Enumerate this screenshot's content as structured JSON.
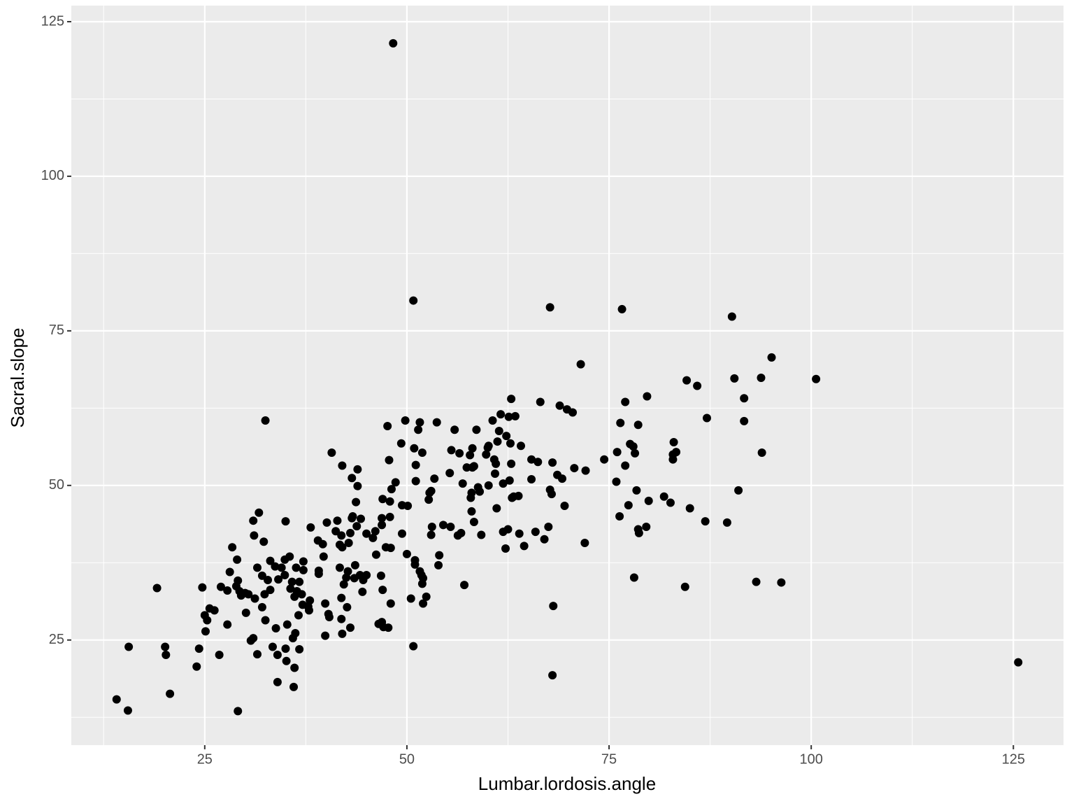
{
  "chart_data": {
    "type": "scatter",
    "x_label": "Lumbar.lordosis.angle",
    "y_label": "Sacral.slope",
    "xlim": [
      8.5,
      131.2
    ],
    "ylim": [
      8.0,
      127.6
    ],
    "xticks": [
      25,
      50,
      75,
      100,
      125
    ],
    "yticks": [
      25,
      50,
      75,
      100,
      125
    ],
    "grid": true,
    "color": "#000000",
    "x": [
      14.1,
      15.5,
      15.6,
      19.1,
      20.1,
      20.2,
      20.7,
      24.0,
      24.3,
      24.7,
      25.0,
      25.3,
      25.1,
      25.6,
      26.2,
      26.8,
      27.0,
      27.8,
      27.8,
      28.1,
      28.4,
      28.9,
      29.0,
      29.1,
      29.1,
      29.3,
      29.5,
      30.0,
      30.1,
      30.4,
      30.7,
      31.0,
      31.1,
      31.0,
      31.2,
      31.5,
      31.5,
      31.7,
      32.1,
      32.1,
      32.3,
      32.4,
      32.5,
      32.5,
      32.8,
      33.1,
      33.1,
      33.4,
      33.7,
      33.8,
      34.0,
      34.0,
      34.1,
      34.5,
      34.9,
      34.9,
      35.0,
      35.0,
      35.1,
      35.2,
      35.5,
      35.6,
      35.8,
      35.9,
      36.0,
      36.1,
      36.1,
      36.2,
      36.3,
      36.4,
      36.6,
      36.7,
      36.7,
      37.0,
      37.1,
      37.2,
      37.2,
      37.8,
      37.9,
      38.0,
      38.1,
      39.0,
      39.1,
      39.1,
      39.6,
      39.7,
      39.9,
      39.9,
      40.1,
      40.3,
      40.4,
      40.7,
      41.2,
      41.4,
      41.7,
      41.7,
      41.9,
      42.0,
      41.9,
      41.9,
      42.0,
      42.0,
      42.2,
      42.5,
      42.6,
      42.7,
      42.8,
      43.0,
      43.0,
      43.2,
      43.2,
      43.3,
      43.5,
      43.6,
      43.7,
      43.8,
      43.9,
      43.9,
      44.2,
      44.3,
      44.5,
      44.6,
      45.0,
      45.0,
      45.8,
      46.1,
      46.2,
      46.5,
      46.8,
      46.9,
      46.9,
      47.0,
      46.9,
      47.0,
      47.1,
      47.4,
      47.6,
      47.7,
      47.8,
      47.9,
      47.9,
      48.0,
      48.0,
      48.1,
      48.3,
      48.6,
      49.3,
      49.4,
      49.4,
      49.8,
      50.0,
      50.1,
      50.5,
      50.8,
      50.8,
      50.9,
      51.0,
      51.0,
      51.1,
      51.1,
      51.4,
      51.6,
      51.6,
      51.8,
      51.9,
      51.9,
      52.0,
      52.0,
      52.4,
      52.7,
      52.8,
      53.0,
      53.0,
      53.1,
      53.4,
      53.7,
      53.9,
      54.0,
      54.5,
      55.3,
      55.4,
      55.5,
      55.9,
      56.3,
      56.5,
      56.7,
      56.9,
      57.1,
      57.4,
      57.8,
      57.9,
      58.0,
      58.0,
      58.1,
      58.1,
      58.3,
      58.3,
      58.6,
      58.8,
      59.0,
      59.2,
      59.8,
      60.0,
      60.1,
      60.1,
      60.6,
      60.8,
      60.9,
      61.0,
      61.1,
      61.2,
      61.4,
      61.6,
      61.9,
      61.9,
      62.2,
      62.3,
      62.5,
      62.6,
      62.7,
      62.8,
      62.9,
      62.9,
      63.0,
      63.2,
      63.4,
      63.8,
      63.9,
      64.1,
      64.5,
      65.4,
      65.4,
      65.9,
      66.2,
      66.5,
      67.0,
      67.5,
      67.7,
      67.7,
      67.9,
      68.0,
      68.1,
      68.0,
      68.6,
      68.9,
      69.2,
      69.8,
      69.5,
      70.5,
      70.7,
      71.5,
      72.0,
      72.1,
      74.4,
      75.9,
      76.0,
      76.3,
      76.4,
      76.6,
      77.0,
      77.0,
      77.4,
      77.6,
      78.0,
      78.1,
      78.2,
      78.4,
      78.6,
      78.6,
      78.7,
      79.6,
      79.7,
      79.9,
      81.8,
      82.6,
      82.9,
      82.9,
      83.0,
      83.3,
      84.4,
      84.6,
      85.0,
      85.9,
      86.9,
      87.1,
      89.6,
      90.2,
      90.5,
      91.0,
      91.7,
      91.7,
      93.2,
      93.8,
      93.9,
      95.1,
      96.3,
      100.6,
      125.6
    ],
    "values": [
      15.4,
      13.6,
      23.9,
      33.4,
      23.9,
      22.6,
      16.3,
      20.7,
      23.6,
      33.5,
      29.0,
      28.2,
      26.4,
      30.1,
      29.8,
      22.6,
      33.6,
      27.5,
      33.0,
      36.0,
      40.0,
      33.7,
      38.0,
      34.6,
      13.5,
      32.9,
      32.2,
      32.6,
      29.4,
      32.4,
      24.9,
      25.3,
      41.9,
      44.3,
      31.7,
      36.7,
      22.7,
      45.6,
      30.3,
      35.4,
      40.9,
      32.4,
      60.5,
      28.2,
      34.7,
      33.1,
      37.8,
      23.9,
      36.9,
      26.9,
      22.6,
      18.2,
      34.8,
      36.7,
      35.5,
      38.0,
      44.2,
      23.6,
      21.6,
      27.5,
      38.5,
      33.3,
      34.4,
      25.3,
      17.4,
      32.0,
      20.5,
      26.1,
      36.7,
      32.9,
      29.0,
      34.4,
      23.5,
      32.4,
      30.7,
      37.7,
      36.3,
      30.4,
      29.8,
      31.4,
      43.2,
      41.1,
      35.7,
      36.2,
      40.5,
      38.5,
      30.9,
      25.7,
      44.0,
      29.2,
      28.7,
      55.3,
      42.6,
      44.3,
      40.4,
      36.7,
      41.9,
      40.0,
      31.8,
      28.4,
      26.0,
      53.2,
      34.0,
      35.1,
      30.3,
      36.1,
      40.7,
      27.0,
      42.3,
      44.7,
      51.2,
      45.0,
      35.0,
      37.1,
      47.3,
      43.4,
      49.9,
      52.6,
      35.5,
      44.6,
      32.8,
      34.7,
      42.2,
      35.5,
      41.5,
      42.6,
      38.8,
      27.6,
      35.4,
      44.7,
      43.6,
      47.8,
      27.9,
      33.1,
      27.1,
      40.0,
      59.6,
      27.0,
      54.1,
      47.4,
      44.9,
      30.9,
      39.9,
      49.4,
      121.5,
      50.5,
      56.8,
      42.2,
      46.8,
      60.5,
      38.9,
      46.7,
      31.7,
      79.9,
      24.0,
      56.0,
      37.9,
      37.2,
      53.3,
      50.7,
      59.0,
      60.2,
      36.1,
      35.5,
      55.3,
      34.1,
      35.0,
      30.9,
      32.0,
      47.7,
      48.8,
      49.1,
      42.0,
      43.3,
      51.1,
      60.2,
      37.1,
      38.7,
      43.6,
      52.0,
      43.3,
      55.7,
      59.0,
      41.9,
      55.2,
      42.3,
      50.3,
      33.9,
      52.9,
      54.9,
      48.0,
      48.8,
      45.8,
      56.0,
      52.9,
      53.1,
      44.1,
      59.0,
      49.7,
      49.0,
      42.0,
      55.0,
      56.1,
      56.4,
      50.0,
      60.5,
      54.2,
      51.9,
      53.5,
      46.3,
      57.1,
      58.8,
      61.5,
      50.3,
      42.5,
      39.8,
      58.0,
      42.9,
      61.1,
      50.8,
      56.8,
      53.5,
      64.0,
      48.0,
      48.2,
      61.2,
      48.3,
      42.2,
      56.4,
      40.2,
      51.0,
      54.2,
      42.5,
      53.8,
      63.5,
      41.3,
      43.3,
      78.8,
      49.3,
      48.6,
      53.7,
      30.5,
      19.3,
      51.7,
      62.9,
      51.1,
      62.3,
      46.7,
      61.8,
      52.8,
      69.6,
      40.7,
      52.4,
      54.2,
      50.6,
      55.4,
      45.0,
      60.1,
      78.5,
      63.5,
      53.2,
      46.8,
      56.7,
      56.3,
      35.1,
      55.2,
      49.2,
      59.8,
      42.9,
      42.3,
      43.3,
      64.4,
      47.5,
      48.2,
      47.2,
      55.0,
      54.2,
      57.0,
      55.4,
      33.6,
      67.0,
      46.3,
      66.1,
      44.2,
      60.9,
      44.0,
      77.3,
      67.3,
      49.2,
      64.1,
      60.4,
      34.4,
      67.4,
      55.3,
      70.7,
      34.3,
      67.2,
      21.4
    ]
  }
}
